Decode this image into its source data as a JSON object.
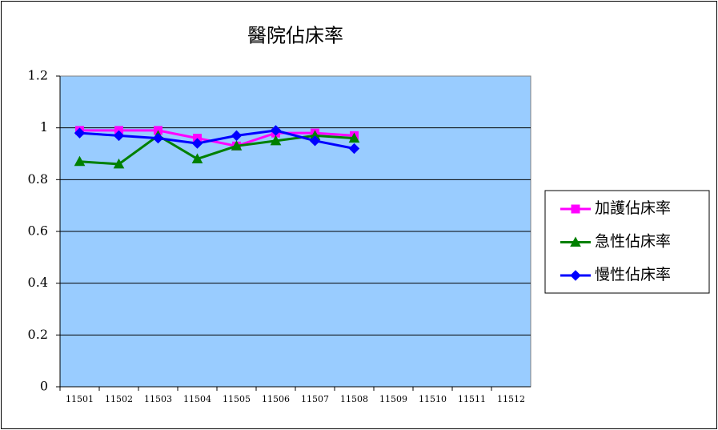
{
  "chart_data": {
    "type": "line",
    "title": "醫院佔床率",
    "categories": [
      "11501",
      "11502",
      "11503",
      "11504",
      "11505",
      "11506",
      "11507",
      "11508",
      "11509",
      "11510",
      "11511",
      "11512"
    ],
    "series": [
      {
        "name": "加護佔床率",
        "color": "#ff00ff",
        "marker": "square",
        "values": [
          0.99,
          0.99,
          0.99,
          0.96,
          0.93,
          0.98,
          0.98,
          0.97,
          null,
          null,
          null,
          null
        ]
      },
      {
        "name": "急性佔床率",
        "color": "#008000",
        "marker": "triangle",
        "values": [
          0.87,
          0.86,
          0.97,
          0.88,
          0.93,
          0.95,
          0.97,
          0.96,
          null,
          null,
          null,
          null
        ]
      },
      {
        "name": "慢性佔床率",
        "color": "#0000ff",
        "marker": "diamond",
        "values": [
          0.98,
          0.97,
          0.96,
          0.94,
          0.97,
          0.99,
          0.95,
          0.92,
          null,
          null,
          null,
          null
        ]
      }
    ],
    "ylim": [
      0,
      1.2
    ],
    "yticks": [
      0,
      0.2,
      0.4,
      0.6,
      0.8,
      1,
      1.2
    ],
    "grid": true,
    "legend": "right"
  }
}
